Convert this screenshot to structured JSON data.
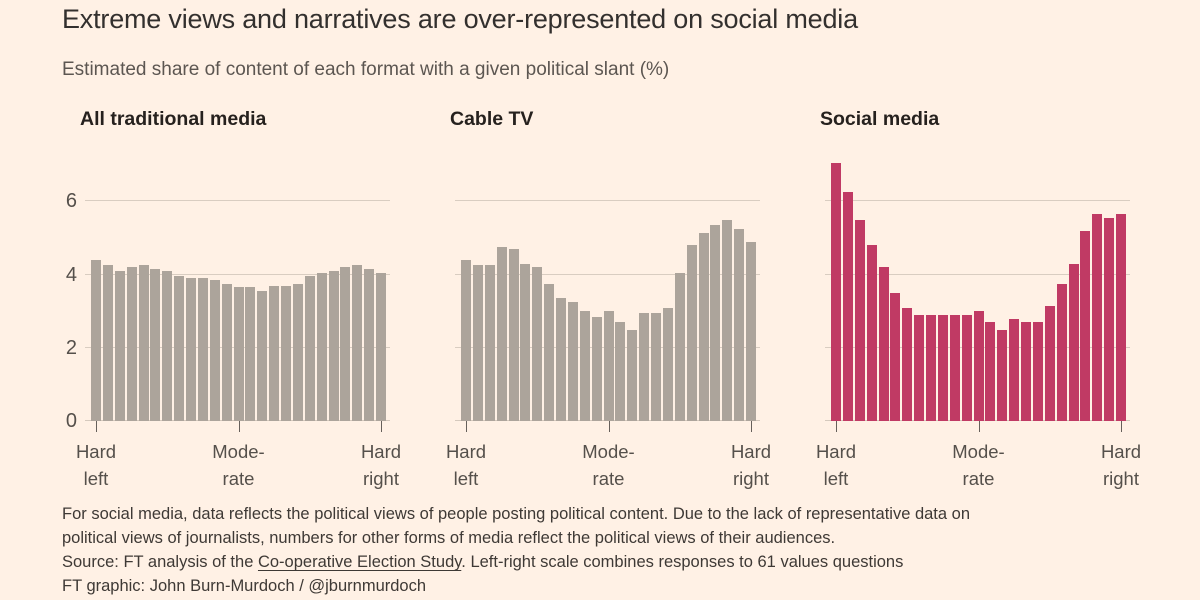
{
  "header": {
    "title": "Extreme views and narratives are over-represented on social media",
    "subtitle": "Estimated share of content of each format with a given political slant (%)"
  },
  "colors": {
    "background": "#FFF1E5",
    "neutral_bar": "#ACA49B",
    "accent_bar": "#C03A64",
    "gridline": "#D9CDC1",
    "axis_text": "#55504B"
  },
  "chart_data": [
    {
      "type": "bar",
      "title": "All traditional media",
      "color": "#ACA49B",
      "ylim": [
        0,
        7.2
      ],
      "yticks": [
        0,
        2,
        4,
        6
      ],
      "grid": true,
      "x_tick_labels": [
        [
          "Hard",
          "left"
        ],
        [
          "Mode-",
          "rate"
        ],
        [
          "Hard",
          "right"
        ]
      ],
      "values": [
        4.4,
        4.25,
        4.1,
        4.2,
        4.25,
        4.15,
        4.1,
        3.95,
        3.9,
        3.9,
        3.85,
        3.75,
        3.65,
        3.65,
        3.55,
        3.7,
        3.7,
        3.75,
        3.95,
        4.05,
        4.1,
        4.2,
        4.25,
        4.15,
        4.05
      ]
    },
    {
      "type": "bar",
      "title": "Cable TV",
      "color": "#ACA49B",
      "ylim": [
        0,
        7.2
      ],
      "yticks": [
        0,
        2,
        4,
        6
      ],
      "grid": true,
      "x_tick_labels": [
        [
          "Hard",
          "left"
        ],
        [
          "Mode-",
          "rate"
        ],
        [
          "Hard",
          "right"
        ]
      ],
      "values": [
        4.4,
        4.25,
        4.25,
        4.75,
        4.7,
        4.3,
        4.2,
        3.75,
        3.35,
        3.25,
        3.0,
        2.85,
        3.0,
        2.7,
        2.5,
        2.95,
        2.95,
        3.1,
        4.05,
        4.8,
        5.15,
        5.35,
        5.5,
        5.25,
        4.9
      ]
    },
    {
      "type": "bar",
      "title": "Social media",
      "color": "#C03A64",
      "ylim": [
        0,
        7.2
      ],
      "yticks": [
        0,
        2,
        4,
        6
      ],
      "grid": true,
      "x_tick_labels": [
        [
          "Hard",
          "left"
        ],
        [
          "Mode-",
          "rate"
        ],
        [
          "Hard",
          "right"
        ]
      ],
      "values": [
        7.05,
        6.25,
        5.5,
        4.8,
        4.2,
        3.5,
        3.1,
        2.9,
        2.9,
        2.9,
        2.9,
        2.9,
        3.0,
        2.7,
        2.5,
        2.8,
        2.7,
        2.7,
        3.15,
        3.75,
        4.3,
        5.2,
        5.65,
        5.55,
        5.65
      ]
    }
  ],
  "footer": {
    "note_line1": "For social media, data reflects the political views of people posting political content. Due to the lack of representative data on",
    "note_line2": "political views of journalists, numbers for other forms of media reflect the political views of their audiences.",
    "source_prefix": "Source: FT analysis of the ",
    "source_link": "Co-operative Election Study",
    "source_suffix": ". Left-right scale combines responses to 61 values questions",
    "credit": "FT graphic: John Burn-Murdoch / @jburnmurdoch"
  }
}
